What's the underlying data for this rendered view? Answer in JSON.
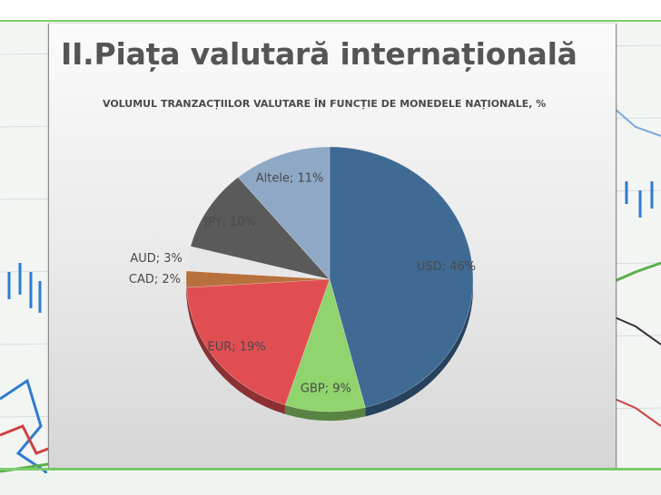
{
  "slide": {
    "title": "II.Piața valutară internațională"
  },
  "chart_data": {
    "type": "pie",
    "title": "VOLUMUL TRANZACȚIILOR VALUTARE ÎN FUNCȚIE DE MONEDELE NAȚIONALE, %",
    "legend": "none",
    "slices": [
      {
        "label": "USD",
        "value": 46,
        "data_label": "USD; 46%",
        "color": "#3f6a94"
      },
      {
        "label": "GBP",
        "value": 9,
        "data_label": "GBP; 9%",
        "color": "#8fd46c"
      },
      {
        "label": "EUR",
        "value": 19,
        "data_label": "EUR; 19%",
        "color": "#e04e52"
      },
      {
        "label": "CAD",
        "value": 2,
        "data_label": "CAD; 2%",
        "color": "#b8703d"
      },
      {
        "label": "AUD",
        "value": 3,
        "data_label": "AUD; 3%",
        "color": "#e7e7e7"
      },
      {
        "label": "JPY",
        "value": 10,
        "data_label": "JPY; 10%",
        "color": "#5a5a5a"
      },
      {
        "label": "Altele",
        "value": 11,
        "data_label": "Altele; 11%",
        "color": "#8ea8c6"
      }
    ]
  }
}
